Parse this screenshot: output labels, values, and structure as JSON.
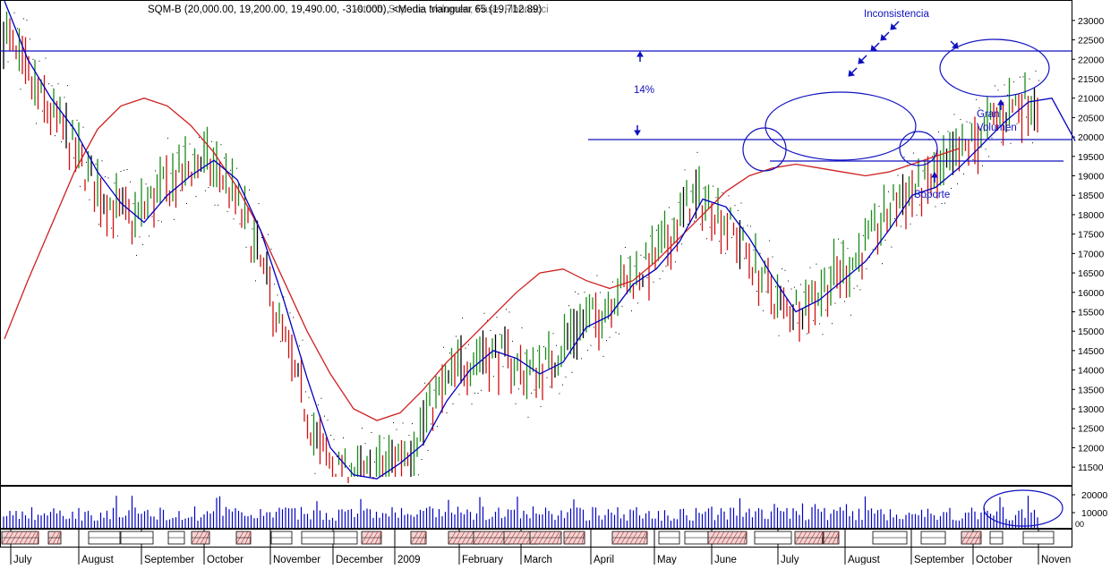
{
  "header": {
    "title": "SQM-B (20,000.00, 19,200.00, 19,490.00, -310.000), <Media triangular 65 (19,712.89)",
    "overlap_text": "-stoch, Soporte, Volumen, Fase, Fibonacci"
  },
  "annotations": {
    "pct": "14%",
    "inconsistencia": "Inconsistencia",
    "gran": "Gran",
    "volumen": "Volumen",
    "soporte": "Soporte"
  },
  "colors": {
    "up": "#1a8c1a",
    "down": "#d01010",
    "neutral": "#000000",
    "fast_ma": "#0000c0",
    "slow_ma": "#d02020",
    "lines": "#1010c0",
    "volume": "#0000c0",
    "annot": "#1010c0"
  },
  "chart_data": {
    "type": "line",
    "title": "SQM-B (20,000.00, 19,200.00, 19,490.00, -310.000), <Media triangular 65 (19,712.89)",
    "x_months": [
      "July",
      "August",
      "September",
      "October",
      "November",
      "December",
      "2009",
      "February",
      "March",
      "April",
      "May",
      "June",
      "July",
      "August",
      "September",
      "October",
      "Noven"
    ],
    "y_ticks": [
      11500,
      12000,
      12500,
      13000,
      13500,
      14000,
      14500,
      15000,
      15500,
      16000,
      16500,
      17000,
      17500,
      18000,
      18500,
      19000,
      19500,
      20000,
      20500,
      21000,
      21500,
      22000,
      22500,
      23000
    ],
    "ylim": [
      11250,
      23250
    ],
    "volume_ticks": [
      10000,
      20000
    ],
    "volume_label": "00",
    "series": [
      {
        "name": "Media triangular 65",
        "points": [
          [
            0,
            14800
          ],
          [
            0.5,
            16300
          ],
          [
            1,
            17700
          ],
          [
            1.5,
            19100
          ],
          [
            2,
            20200
          ],
          [
            2.5,
            20800
          ],
          [
            3,
            21000
          ],
          [
            3.5,
            20800
          ],
          [
            4,
            20300
          ],
          [
            4.5,
            19600
          ],
          [
            5,
            18700
          ],
          [
            5.5,
            17600
          ],
          [
            6,
            16300
          ],
          [
            6.5,
            15000
          ],
          [
            7,
            13900
          ],
          [
            7.5,
            13000
          ],
          [
            8,
            12700
          ],
          [
            8.5,
            12900
          ],
          [
            9,
            13500
          ],
          [
            9.5,
            14200
          ],
          [
            10,
            14800
          ],
          [
            10.5,
            15400
          ],
          [
            11,
            16000
          ],
          [
            11.5,
            16500
          ],
          [
            12,
            16600
          ],
          [
            12.5,
            16300
          ],
          [
            13,
            16100
          ],
          [
            13.5,
            16300
          ],
          [
            14,
            16800
          ],
          [
            14.5,
            17400
          ],
          [
            15,
            18000
          ],
          [
            15.5,
            18600
          ],
          [
            16,
            19000
          ],
          [
            16.5,
            19200
          ],
          [
            17,
            19300
          ],
          [
            17.5,
            19200
          ],
          [
            18,
            19100
          ],
          [
            18.5,
            19000
          ],
          [
            19,
            19100
          ],
          [
            19.5,
            19300
          ],
          [
            20,
            19500
          ],
          [
            20.5,
            19700
          ]
        ]
      },
      {
        "name": "",
        "points": [
          [
            0,
            23500
          ],
          [
            0.5,
            22000
          ],
          [
            1,
            21000
          ],
          [
            1.5,
            20200
          ],
          [
            2,
            19100
          ],
          [
            2.5,
            18300
          ],
          [
            3,
            17800
          ],
          [
            3.5,
            18500
          ],
          [
            4,
            19000
          ],
          [
            4.5,
            19400
          ],
          [
            5,
            18900
          ],
          [
            5.5,
            17600
          ],
          [
            6,
            15800
          ],
          [
            6.5,
            13800
          ],
          [
            7,
            12000
          ],
          [
            7.5,
            11300
          ],
          [
            8,
            11200
          ],
          [
            8.5,
            11600
          ],
          [
            9,
            12100
          ],
          [
            9.5,
            13200
          ],
          [
            10,
            14000
          ],
          [
            10.5,
            14500
          ],
          [
            11,
            14300
          ],
          [
            11.5,
            13900
          ],
          [
            12,
            14200
          ],
          [
            12.5,
            15100
          ],
          [
            13,
            15400
          ],
          [
            13.5,
            16200
          ],
          [
            14,
            16600
          ],
          [
            14.5,
            17300
          ],
          [
            15,
            18400
          ],
          [
            15.5,
            18200
          ],
          [
            16,
            17400
          ],
          [
            16.5,
            16400
          ],
          [
            17,
            15500
          ],
          [
            17.5,
            15800
          ],
          [
            18,
            16300
          ],
          [
            18.5,
            16800
          ],
          [
            19,
            17600
          ],
          [
            19.5,
            18500
          ],
          [
            20,
            18700
          ],
          [
            20.5,
            19200
          ],
          [
            21,
            19800
          ],
          [
            21.5,
            20400
          ],
          [
            22,
            20900
          ],
          [
            22.5,
            21000
          ],
          [
            23,
            19900
          ]
        ]
      }
    ]
  }
}
